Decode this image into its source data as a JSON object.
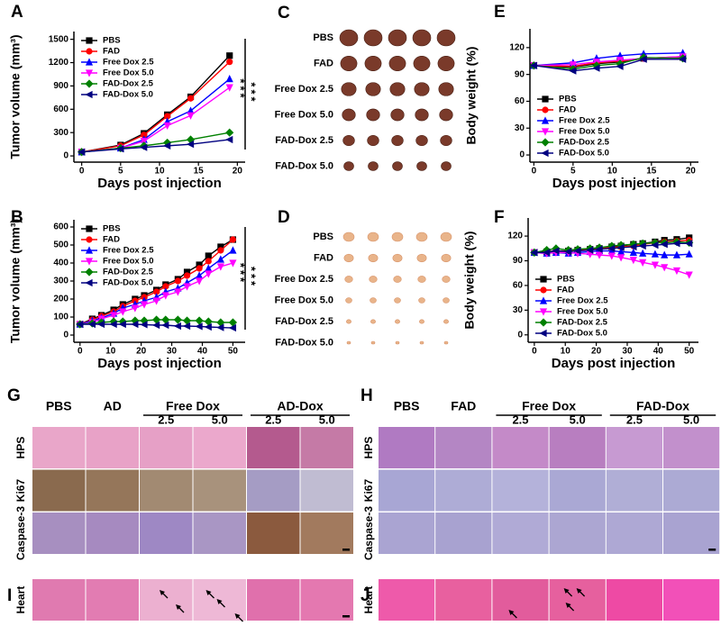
{
  "chart_data": [
    {
      "type": "line",
      "panel_label": "A",
      "ylabel": "Tumor volume (mm³)",
      "xlabel": "Days post injection",
      "x": [
        0,
        5,
        8,
        11,
        14,
        19
      ],
      "xlim": [
        -1,
        21
      ],
      "xticks": [
        0,
        5,
        10,
        15,
        20
      ],
      "ylim": [
        -80,
        1600
      ],
      "yticks": [
        0,
        300,
        600,
        900,
        1200,
        1500
      ],
      "legend": "upper left",
      "annotations": [
        "***",
        "***"
      ],
      "series": [
        {
          "name": "PBS",
          "color": "#000000",
          "marker": "square",
          "values": [
            50,
            140,
            290,
            530,
            760,
            1290
          ]
        },
        {
          "name": "FAD",
          "color": "#ff0000",
          "marker": "circle",
          "values": [
            50,
            130,
            270,
            510,
            740,
            1210
          ]
        },
        {
          "name": "Free Dox 2.5",
          "color": "#0000ff",
          "marker": "triangle-up",
          "values": [
            50,
            100,
            210,
            440,
            580,
            990
          ]
        },
        {
          "name": "Free Dox 5.0",
          "color": "#ff00ff",
          "marker": "triangle-down",
          "values": [
            50,
            100,
            190,
            390,
            520,
            880
          ]
        },
        {
          "name": "FAD-Dox 2.5",
          "color": "#008000",
          "marker": "diamond",
          "values": [
            50,
            100,
            130,
            170,
            210,
            300
          ]
        },
        {
          "name": "FAD-Dox 5.0",
          "color": "#000080",
          "marker": "triangle-left",
          "values": [
            50,
            90,
            110,
            130,
            150,
            210
          ]
        }
      ]
    },
    {
      "type": "line",
      "panel_label": "B",
      "ylabel": "Tumor volume (mm³)",
      "xlabel": "Days post injection",
      "x": [
        0,
        4,
        7,
        11,
        14,
        18,
        21,
        25,
        28,
        32,
        35,
        39,
        42,
        46,
        50
      ],
      "xlim": [
        -2,
        54
      ],
      "xticks": [
        0,
        10,
        20,
        30,
        40,
        50
      ],
      "ylim": [
        -40,
        640
      ],
      "yticks": [
        0,
        100,
        200,
        300,
        400,
        500,
        600
      ],
      "legend": "upper left",
      "annotations": [
        "***",
        "***"
      ],
      "series": [
        {
          "name": "PBS",
          "color": "#000000",
          "marker": "square",
          "values": [
            60,
            90,
            110,
            140,
            170,
            200,
            220,
            250,
            280,
            310,
            350,
            390,
            440,
            490,
            530
          ]
        },
        {
          "name": "FAD",
          "color": "#ff0000",
          "marker": "circle",
          "values": [
            60,
            85,
            105,
            130,
            160,
            190,
            210,
            240,
            270,
            300,
            330,
            370,
            410,
            470,
            530
          ]
        },
        {
          "name": "Free Dox 2.5",
          "color": "#0000ff",
          "marker": "triangle-up",
          "values": [
            60,
            80,
            95,
            120,
            150,
            170,
            190,
            210,
            240,
            260,
            290,
            330,
            370,
            420,
            470
          ]
        },
        {
          "name": "Free Dox 5.0",
          "color": "#ff00ff",
          "marker": "triangle-down",
          "values": [
            60,
            70,
            90,
            110,
            130,
            150,
            170,
            190,
            220,
            240,
            270,
            300,
            340,
            380,
            400
          ]
        },
        {
          "name": "FAD-Dox 2.5",
          "color": "#008000",
          "marker": "diamond",
          "values": [
            60,
            65,
            70,
            75,
            75,
            80,
            80,
            85,
            85,
            85,
            80,
            80,
            75,
            70,
            70
          ]
        },
        {
          "name": "FAD-Dox 5.0",
          "color": "#000080",
          "marker": "triangle-left",
          "values": [
            60,
            60,
            60,
            60,
            60,
            60,
            58,
            55,
            55,
            50,
            50,
            48,
            45,
            42,
            40
          ]
        }
      ]
    },
    {
      "type": "line",
      "panel_label": "E",
      "ylabel": "Body weight (%)",
      "xlabel": "Days post injection",
      "x": [
        0,
        5,
        8,
        11,
        14,
        19
      ],
      "xlim": [
        -0.5,
        21
      ],
      "xticks": [
        0,
        5,
        10,
        15,
        20
      ],
      "ylim": [
        -8,
        141
      ],
      "yticks": [
        0,
        30,
        60,
        90,
        120
      ],
      "legend": "lower left",
      "series": [
        {
          "name": "PBS",
          "color": "#000000",
          "marker": "square",
          "values": [
            100,
            98,
            102,
            104,
            108,
            109
          ]
        },
        {
          "name": "FAD",
          "color": "#ff0000",
          "marker": "circle",
          "values": [
            100,
            99,
            103,
            105,
            108,
            110
          ]
        },
        {
          "name": "Free Dox 2.5",
          "color": "#0000ff",
          "marker": "triangle-up",
          "values": [
            100,
            103,
            108,
            111,
            113,
            114
          ]
        },
        {
          "name": "Free Dox 5.0",
          "color": "#ff00ff",
          "marker": "triangle-down",
          "values": [
            100,
            101,
            104,
            106,
            108,
            110
          ]
        },
        {
          "name": "FAD-Dox 2.5",
          "color": "#008000",
          "marker": "diamond",
          "values": [
            100,
            96,
            100,
            102,
            109,
            108
          ]
        },
        {
          "name": "FAD-Dox 5.0",
          "color": "#000080",
          "marker": "triangle-left",
          "values": [
            100,
            94,
            97,
            99,
            107,
            107
          ]
        }
      ]
    },
    {
      "type": "line",
      "panel_label": "F",
      "ylabel": "Body weight (%)",
      "xlabel": "Days post injection",
      "x": [
        0,
        4,
        7,
        11,
        14,
        18,
        21,
        25,
        28,
        32,
        35,
        39,
        42,
        46,
        50
      ],
      "xlim": [
        -2,
        53
      ],
      "xticks": [
        0,
        10,
        20,
        30,
        40,
        50
      ],
      "ylim": [
        -9,
        142
      ],
      "yticks": [
        0,
        30,
        60,
        90,
        120
      ],
      "legend": "lower left",
      "series": [
        {
          "name": "PBS",
          "color": "#000000",
          "marker": "square",
          "values": [
            100,
            101,
            102,
            102,
            103,
            104,
            105,
            107,
            108,
            110,
            111,
            113,
            115,
            116,
            118
          ]
        },
        {
          "name": "FAD",
          "color": "#ff0000",
          "marker": "circle",
          "values": [
            100,
            100,
            101,
            102,
            103,
            104,
            105,
            106,
            107,
            108,
            110,
            112,
            113,
            114,
            115
          ]
        },
        {
          "name": "Free Dox 2.5",
          "color": "#0000ff",
          "marker": "triangle-up",
          "values": [
            100,
            99,
            100,
            99,
            100,
            101,
            102,
            102,
            101,
            100,
            99,
            98,
            97,
            97,
            98
          ]
        },
        {
          "name": "Free Dox 5.0",
          "color": "#ff00ff",
          "marker": "triangle-down",
          "values": [
            100,
            99,
            100,
            100,
            99,
            98,
            97,
            96,
            94,
            91,
            88,
            85,
            82,
            78,
            73
          ]
        },
        {
          "name": "FAD-Dox 2.5",
          "color": "#008000",
          "marker": "diamond",
          "values": [
            100,
            103,
            105,
            103,
            104,
            105,
            106,
            108,
            109,
            110,
            111,
            112,
            112,
            113,
            112
          ]
        },
        {
          "name": "FAD-Dox 5.0",
          "color": "#000080",
          "marker": "triangle-left",
          "values": [
            100,
            100,
            102,
            101,
            102,
            103,
            104,
            105,
            106,
            107,
            108,
            109,
            110,
            111,
            111
          ]
        }
      ]
    }
  ],
  "photo_panels": [
    {
      "label": "C",
      "rows": [
        "PBS",
        "FAD",
        "Free Dox 2.5",
        "Free Dox 5.0",
        "FAD-Dox 2.5",
        "FAD-Dox 5.0"
      ]
    },
    {
      "label": "D",
      "rows": [
        "PBS",
        "FAD",
        "Free Dox 2.5",
        "Free Dox 5.0",
        "FAD-Dox 2.5",
        "FAD-Dox 5.0"
      ]
    }
  ],
  "histology_panels": [
    {
      "label": "G",
      "groups": [
        "PBS",
        "AD",
        "Free Dox",
        "AD-Dox"
      ],
      "doses": [
        "2.5",
        "5.0",
        "2.5",
        "5.0"
      ],
      "rows": [
        "HPS",
        "Ki67",
        "Caspase-3"
      ]
    },
    {
      "label": "H",
      "groups": [
        "PBS",
        "FAD",
        "Free Dox",
        "FAD-Dox"
      ],
      "doses": [
        "2.5",
        "5.0",
        "2.5",
        "5.0"
      ],
      "rows": [
        "HPS",
        "Ki67",
        "Caspase-3"
      ]
    }
  ],
  "heart_panels": [
    {
      "label": "I",
      "row": "Heart"
    },
    {
      "label": "J",
      "row": "Heart"
    }
  ]
}
